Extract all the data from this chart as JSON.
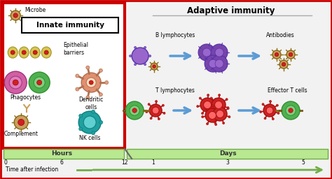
{
  "bg_color": "#f0f0f0",
  "outer_border_color": "#cc0000",
  "innate_box_color": "#cc0000",
  "innate_label": "Innate immunity",
  "adaptive_label": "Adaptive immunity",
  "microbe_label": "Microbe",
  "epithelial_label": "Epithelial\nbarriers",
  "phagocytes_label": "Phagocytes",
  "dendritic_label": "Dendritic\ncells",
  "complement_label": "Complement",
  "nk_label": "NK cells",
  "b_lympho_label": "B lymphocytes",
  "t_lympho_label": "T lymphocytes",
  "antibodies_label": "Antibodies",
  "effector_label": "Effector T cells",
  "hours_label": "Hours",
  "days_label": "Days",
  "time_label": "Time after infection",
  "arrow_color": "#5b9bd5",
  "timeline_color": "#70ad47",
  "cell_pink": "#d060a0",
  "cell_green": "#50b050",
  "cell_purple": "#9966cc",
  "cell_red": "#cc2222",
  "cell_teal": "#20a0a0",
  "cell_tan": "#c8a060",
  "cell_peach": "#e09070",
  "cell_dark_purple": "#7744aa"
}
